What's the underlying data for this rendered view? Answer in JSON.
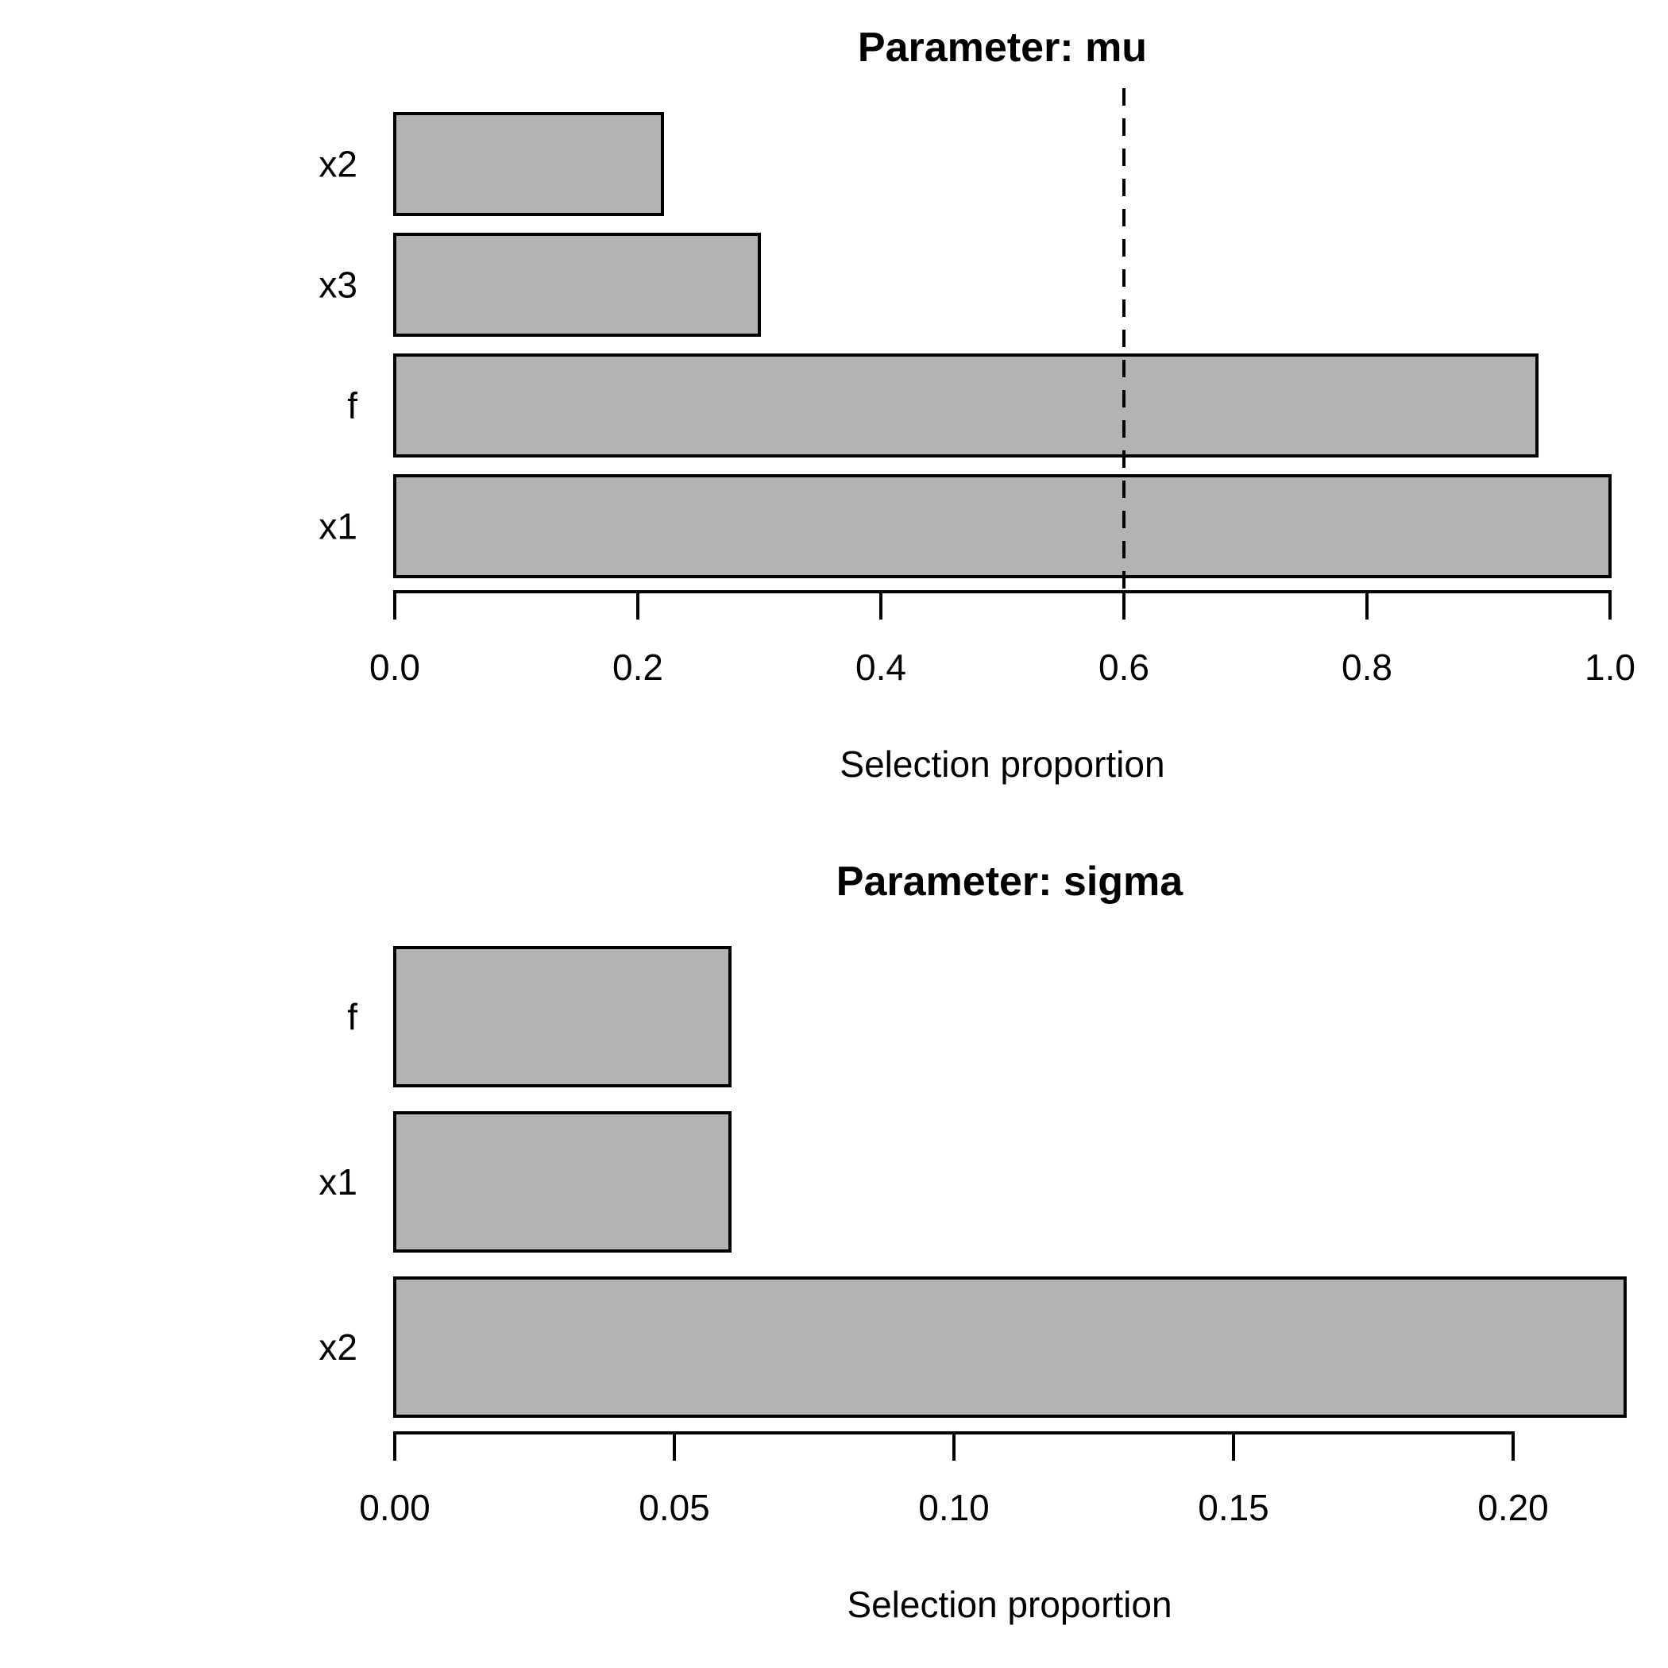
{
  "figure": {
    "background": "#ffffff",
    "text_color": "#000000"
  },
  "chart_data": [
    {
      "type": "bar",
      "orientation": "horizontal",
      "title": "Parameter: mu",
      "xlabel": "Selection proportion",
      "categories": [
        "x2",
        "x3",
        "f",
        "x1"
      ],
      "values": [
        0.22,
        0.3,
        0.94,
        1.0
      ],
      "xlim": [
        0.0,
        1.0
      ],
      "xticks": {
        "values": [
          0.0,
          0.2,
          0.4,
          0.6,
          0.8,
          1.0
        ],
        "labels": [
          "0.0",
          "0.2",
          "0.4",
          "0.6",
          "0.8",
          "1.0"
        ]
      },
      "threshold_line": {
        "value": 0.6,
        "style": "dashed",
        "color": "#000000"
      },
      "bar_fill": "#b3b3b3",
      "bar_border": "#000000",
      "grid": false,
      "legend": "none"
    },
    {
      "type": "bar",
      "orientation": "horizontal",
      "title": "Parameter: sigma",
      "xlabel": "Selection proportion",
      "categories": [
        "f",
        "x1",
        "x2"
      ],
      "values": [
        0.06,
        0.06,
        0.22
      ],
      "xlim": [
        0.0,
        0.22
      ],
      "xticks": {
        "values": [
          0.0,
          0.05,
          0.1,
          0.15,
          0.2
        ],
        "labels": [
          "0.00",
          "0.05",
          "0.10",
          "0.15",
          "0.20"
        ]
      },
      "threshold_line": null,
      "bar_fill": "#b3b3b3",
      "bar_border": "#000000",
      "grid": false,
      "legend": "none"
    }
  ]
}
